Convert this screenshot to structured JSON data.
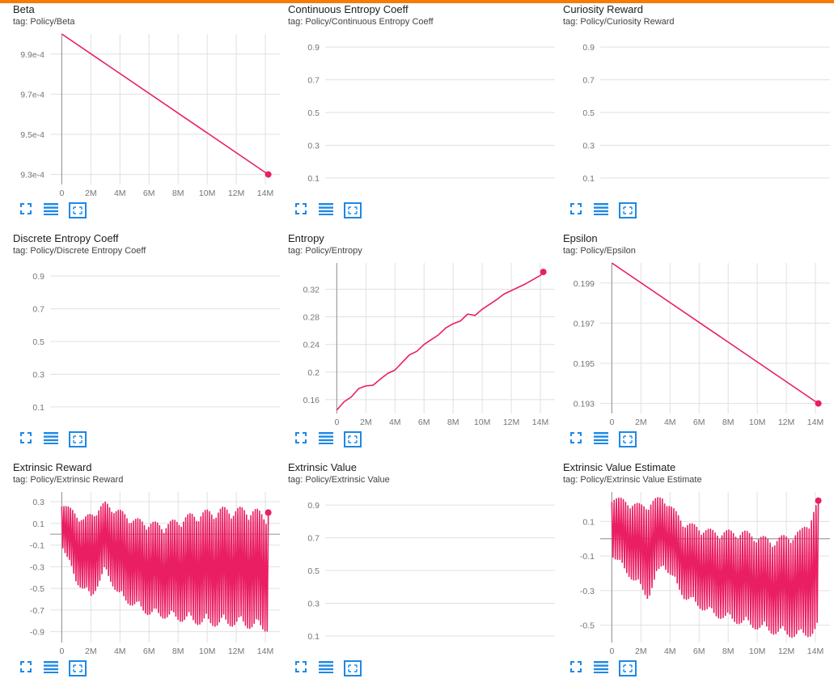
{
  "colors": {
    "accent": "#e91e63",
    "topbar": "#f57c00",
    "axis_zero": "#9e9e9e",
    "grid": "#e0e0e0",
    "icon": "#1e88e5"
  },
  "icons": {
    "expand": "fullscreen-icon",
    "data_table": "data-table-icon",
    "fit_domain": "fit-domain-icon"
  },
  "cards": [
    {
      "title": "Beta",
      "tag": "tag: Policy/Beta",
      "chart_data": {
        "type": "line",
        "title": "Beta",
        "xlim": [
          -800000,
          15000000
        ],
        "ylim": [
          0.000925,
          0.001
        ],
        "x_ticks": [
          0,
          2000000,
          4000000,
          6000000,
          8000000,
          10000000,
          12000000,
          14000000
        ],
        "x_tick_labels": [
          "0",
          "2M",
          "4M",
          "6M",
          "8M",
          "10M",
          "12M",
          "14M"
        ],
        "y_ticks": [
          0.00093,
          0.00095,
          0.00097,
          0.00099
        ],
        "y_tick_labels": [
          "9.3e-4",
          "9.5e-4",
          "9.7e-4",
          "9.9e-4"
        ],
        "grid": true,
        "series": [
          {
            "x": [
              0,
              14200000
            ],
            "y": [
              0.001,
              0.00093
            ]
          }
        ]
      }
    },
    {
      "title": "Continuous Entropy Coeff",
      "tag": "tag: Policy/Continuous Entropy Coeff",
      "chart_data": {
        "type": "line",
        "title": "Continuous Entropy Coeff",
        "xlim": [
          0,
          1
        ],
        "ylim": [
          0.06,
          0.98
        ],
        "x_ticks": [],
        "x_tick_labels": [],
        "y_ticks": [
          0.1,
          0.3,
          0.5,
          0.7,
          0.9
        ],
        "y_tick_labels": [
          "0.1",
          "0.3",
          "0.5",
          "0.7",
          "0.9"
        ],
        "grid": true,
        "series": []
      }
    },
    {
      "title": "Curiosity Reward",
      "tag": "tag: Policy/Curiosity Reward",
      "chart_data": {
        "type": "line",
        "title": "Curiosity Reward",
        "xlim": [
          0,
          1
        ],
        "ylim": [
          0.06,
          0.98
        ],
        "x_ticks": [],
        "x_tick_labels": [],
        "y_ticks": [
          0.1,
          0.3,
          0.5,
          0.7,
          0.9
        ],
        "y_tick_labels": [
          "0.1",
          "0.3",
          "0.5",
          "0.7",
          "0.9"
        ],
        "grid": true,
        "series": []
      }
    },
    {
      "title": "Discrete Entropy Coeff",
      "tag": "tag: Policy/Discrete Entropy Coeff",
      "chart_data": {
        "type": "line",
        "title": "Discrete Entropy Coeff",
        "xlim": [
          0,
          1
        ],
        "ylim": [
          0.06,
          0.98
        ],
        "x_ticks": [],
        "x_tick_labels": [],
        "y_ticks": [
          0.1,
          0.3,
          0.5,
          0.7,
          0.9
        ],
        "y_tick_labels": [
          "0.1",
          "0.3",
          "0.5",
          "0.7",
          "0.9"
        ],
        "grid": true,
        "series": []
      }
    },
    {
      "title": "Entropy",
      "tag": "tag: Policy/Entropy",
      "chart_data": {
        "type": "line",
        "title": "Entropy",
        "xlim": [
          -800000,
          15000000
        ],
        "ylim": [
          0.14,
          0.358
        ],
        "x_ticks": [
          0,
          2000000,
          4000000,
          6000000,
          8000000,
          10000000,
          12000000,
          14000000
        ],
        "x_tick_labels": [
          "0",
          "2M",
          "4M",
          "6M",
          "8M",
          "10M",
          "12M",
          "14M"
        ],
        "y_ticks": [
          0.16,
          0.2,
          0.24,
          0.28,
          0.32
        ],
        "y_tick_labels": [
          "0.16",
          "0.2",
          "0.24",
          "0.28",
          "0.32"
        ],
        "grid": true,
        "series": [
          {
            "x": [
              0,
              500000,
              1000000,
              1500000,
              2000000,
              2500000,
              3000000,
              3500000,
              4000000,
              4500000,
              5000000,
              5500000,
              6000000,
              6500000,
              7000000,
              7500000,
              8000000,
              8500000,
              9000000,
              9500000,
              10000000,
              10500000,
              11000000,
              11500000,
              12000000,
              12500000,
              13000000,
              13500000,
              14000000,
              14200000
            ],
            "y": [
              0.145,
              0.157,
              0.164,
              0.176,
              0.18,
              0.181,
              0.19,
              0.198,
              0.203,
              0.214,
              0.225,
              0.23,
              0.24,
              0.247,
              0.254,
              0.264,
              0.27,
              0.274,
              0.284,
              0.282,
              0.291,
              0.298,
              0.305,
              0.313,
              0.318,
              0.323,
              0.328,
              0.334,
              0.34,
              0.345
            ]
          }
        ]
      }
    },
    {
      "title": "Epsilon",
      "tag": "tag: Policy/Epsilon",
      "chart_data": {
        "type": "line",
        "title": "Epsilon",
        "xlim": [
          -800000,
          15000000
        ],
        "ylim": [
          0.1925,
          0.2
        ],
        "x_ticks": [
          0,
          2000000,
          4000000,
          6000000,
          8000000,
          10000000,
          12000000,
          14000000
        ],
        "x_tick_labels": [
          "0",
          "2M",
          "4M",
          "6M",
          "8M",
          "10M",
          "12M",
          "14M"
        ],
        "y_ticks": [
          0.193,
          0.195,
          0.197,
          0.199
        ],
        "y_tick_labels": [
          "0.193",
          "0.195",
          "0.197",
          "0.199"
        ],
        "grid": true,
        "series": [
          {
            "x": [
              0,
              14200000
            ],
            "y": [
              0.2,
              0.193
            ]
          }
        ]
      }
    },
    {
      "title": "Extrinsic Reward",
      "tag": "tag: Policy/Extrinsic Reward",
      "chart_data": {
        "type": "line",
        "title": "Extrinsic Reward",
        "xlim": [
          -800000,
          15000000
        ],
        "ylim": [
          -1.0,
          0.39
        ],
        "x_ticks": [
          0,
          2000000,
          4000000,
          6000000,
          8000000,
          10000000,
          12000000,
          14000000
        ],
        "x_tick_labels": [
          "0",
          "2M",
          "4M",
          "6M",
          "8M",
          "10M",
          "12M",
          "14M"
        ],
        "y_ticks": [
          -0.9,
          -0.7,
          -0.5,
          -0.3,
          -0.1,
          0.1,
          0.3
        ],
        "y_tick_labels": [
          "-0.9",
          "-0.7",
          "-0.5",
          "-0.3",
          "-0.1",
          "0.1",
          "0.3"
        ],
        "grid": true,
        "series": [
          {
            "oscillating": true,
            "x_end": 14200000,
            "cycles": 95,
            "upper": [
              [
                0,
                0.3
              ],
              [
                1500000,
                0.15
              ],
              [
                3000000,
                0.3
              ],
              [
                5000000,
                0.15
              ],
              [
                7000000,
                0.1
              ],
              [
                9000000,
                0.2
              ],
              [
                11000000,
                0.25
              ],
              [
                13000000,
                0.25
              ],
              [
                14200000,
                0.2
              ]
            ],
            "lower": [
              [
                0,
                -0.1
              ],
              [
                1000000,
                -0.45
              ],
              [
                2000000,
                -0.6
              ],
              [
                3000000,
                -0.35
              ],
              [
                4000000,
                -0.6
              ],
              [
                6000000,
                -0.75
              ],
              [
                8000000,
                -0.8
              ],
              [
                10000000,
                -0.85
              ],
              [
                12000000,
                -0.85
              ],
              [
                14200000,
                -0.9
              ]
            ],
            "last_value": 0.2
          }
        ]
      }
    },
    {
      "title": "Extrinsic Value",
      "tag": "tag: Policy/Extrinsic Value",
      "chart_data": {
        "type": "line",
        "title": "Extrinsic Value",
        "xlim": [
          0,
          1
        ],
        "ylim": [
          0.06,
          0.98
        ],
        "x_ticks": [],
        "x_tick_labels": [],
        "y_ticks": [
          0.1,
          0.3,
          0.5,
          0.7,
          0.9
        ],
        "y_tick_labels": [
          "0.1",
          "0.3",
          "0.5",
          "0.7",
          "0.9"
        ],
        "grid": true,
        "series": []
      }
    },
    {
      "title": "Extrinsic Value Estimate",
      "tag": "tag: Policy/Extrinsic Value Estimate",
      "chart_data": {
        "type": "line",
        "title": "Extrinsic Value Estimate",
        "xlim": [
          -800000,
          15000000
        ],
        "ylim": [
          -0.6,
          0.27
        ],
        "x_ticks": [
          0,
          2000000,
          4000000,
          6000000,
          8000000,
          10000000,
          12000000,
          14000000
        ],
        "x_tick_labels": [
          "0",
          "2M",
          "4M",
          "6M",
          "8M",
          "10M",
          "12M",
          "14M"
        ],
        "y_ticks": [
          -0.5,
          -0.3,
          -0.1,
          0.1
        ],
        "y_tick_labels": [
          "-0.5",
          "-0.3",
          "-0.1",
          "0.1"
        ],
        "grid": true,
        "series": [
          {
            "oscillating": true,
            "x_end": 14200000,
            "cycles": 90,
            "upper": [
              [
                0,
                0.25
              ],
              [
                2000000,
                0.2
              ],
              [
                3500000,
                0.25
              ],
              [
                5000000,
                0.1
              ],
              [
                7000000,
                0.05
              ],
              [
                9000000,
                0.05
              ],
              [
                11000000,
                0.0
              ],
              [
                13000000,
                0.05
              ],
              [
                14200000,
                0.22
              ]
            ],
            "lower": [
              [
                0,
                -0.1
              ],
              [
                1500000,
                -0.25
              ],
              [
                2500000,
                -0.35
              ],
              [
                3500000,
                -0.15
              ],
              [
                5000000,
                -0.35
              ],
              [
                7000000,
                -0.45
              ],
              [
                9000000,
                -0.5
              ],
              [
                11000000,
                -0.55
              ],
              [
                13000000,
                -0.58
              ],
              [
                14200000,
                -0.55
              ]
            ],
            "last_value": 0.22
          }
        ]
      }
    }
  ]
}
